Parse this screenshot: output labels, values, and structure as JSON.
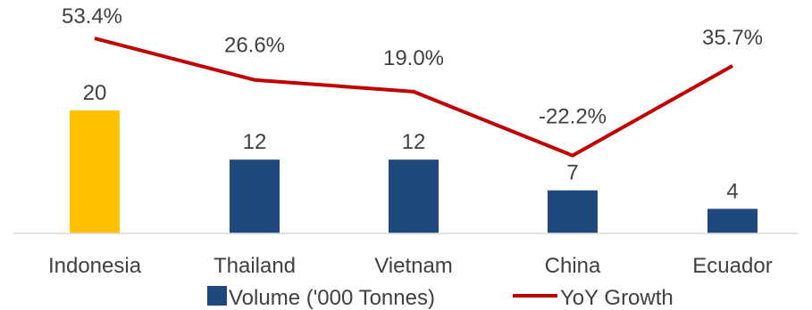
{
  "chart_data": {
    "type": "bar+line",
    "categories": [
      "Indonesia",
      "Thailand",
      "Vietnam",
      "China",
      "Ecuador"
    ],
    "series": [
      {
        "name": "Volume ('000 Tonnes)",
        "type": "bar",
        "values": [
          20,
          12,
          12,
          7,
          4
        ],
        "value_labels": [
          "20",
          "12",
          "12",
          "7",
          "4"
        ],
        "color": "#1F497D",
        "highlight": {
          "index": 0,
          "color": "#FFC000"
        }
      },
      {
        "name": "YoY Growth",
        "type": "line",
        "values": [
          53.4,
          26.6,
          19.0,
          -22.2,
          35.7
        ],
        "value_labels": [
          "53.4%",
          "26.6%",
          "19.0%",
          "-22.2%",
          "35.7%"
        ],
        "color": "#C00000"
      }
    ],
    "bar_ylim": [
      0,
      40
    ],
    "line_ylim": [
      -40,
      80
    ],
    "grid": false,
    "legend_position": "bottom"
  }
}
